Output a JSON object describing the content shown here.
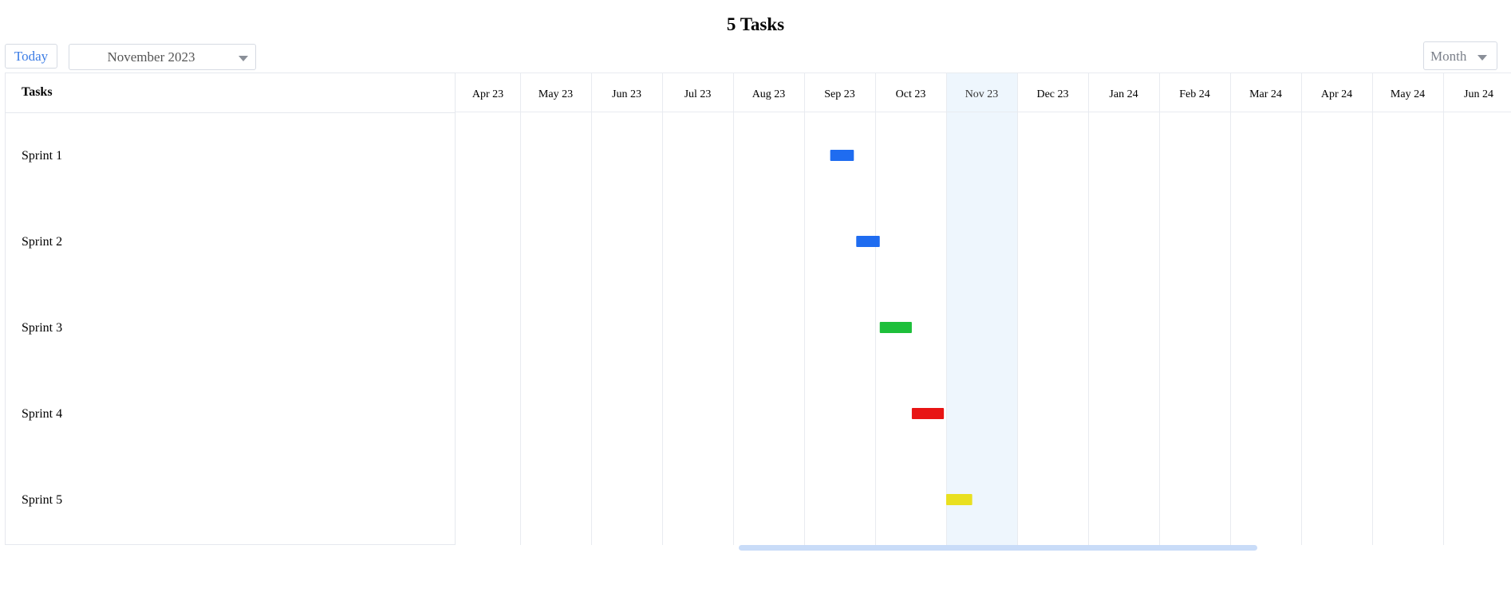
{
  "title": "5 Tasks",
  "toolbar": {
    "today_label": "Today",
    "date_value": "November 2023",
    "view_value": "Month"
  },
  "tasks_header": "Tasks",
  "tasks": [
    {
      "name": "Sprint 1",
      "start": "2023-09-12",
      "end": "2023-09-22",
      "color": "#1f6cf0"
    },
    {
      "name": "Sprint 2",
      "start": "2023-09-23",
      "end": "2023-10-03",
      "color": "#1f6cf0"
    },
    {
      "name": "Sprint 3",
      "start": "2023-10-03",
      "end": "2023-10-17",
      "color": "#1dbf3a"
    },
    {
      "name": "Sprint 4",
      "start": "2023-10-17",
      "end": "2023-10-31",
      "color": "#e81414"
    },
    {
      "name": "Sprint 5",
      "start": "2023-11-01",
      "end": "2023-11-12",
      "color": "#e9e020"
    }
  ],
  "months": [
    "Apr 23",
    "May 23",
    "Jun 23",
    "Jul 23",
    "Aug 23",
    "Sep 23",
    "Oct 23",
    "Nov 23",
    "Dec 23",
    "Jan 24",
    "Feb 24",
    "Mar 24",
    "Apr 24",
    "May 24",
    "Jun 24"
  ],
  "current_month": "Nov 23",
  "colors": {
    "grid": "#e8ebf0",
    "current_month_fill": "#eef6fd",
    "scrollbar": "#c9dcf8"
  }
}
